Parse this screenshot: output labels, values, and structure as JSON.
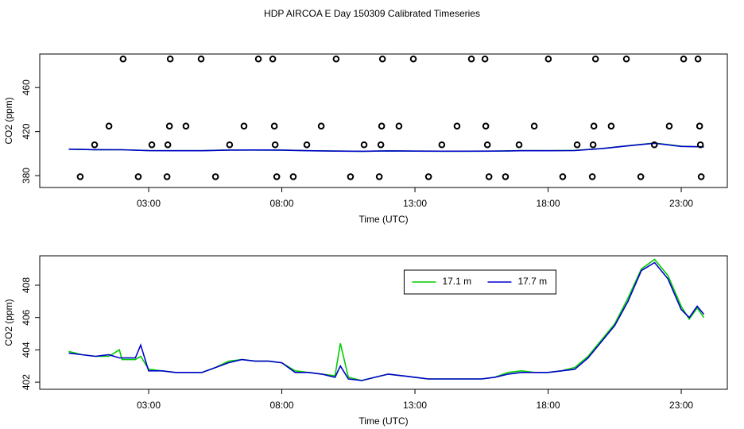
{
  "title": "HDP AIRCOA E  Day 150309  Calibrated Timeseries",
  "chart_data": [
    {
      "type": "scatter",
      "x_label": "Time (UTC)",
      "y_label": "CO2 (ppm)",
      "x": [
        2.04,
        3.81,
        4.97,
        7.12,
        7.66,
        10.04,
        11.78,
        12.94,
        15.12,
        15.63,
        18.01,
        19.78,
        20.94,
        23.09,
        23.63,
        1.51,
        3.78,
        4.4,
        6.58,
        7.72,
        9.48,
        11.75,
        12.4,
        14.58,
        15.66,
        17.48,
        19.72,
        20.37,
        22.55,
        23.69,
        0.97,
        3.12,
        3.72,
        6.04,
        7.75,
        8.94,
        11.09,
        11.72,
        14.01,
        15.72,
        16.91,
        19.09,
        19.69,
        21.99,
        23.72,
        0.43,
        2.61,
        3.69,
        5.51,
        7.81,
        8.43,
        10.58,
        11.66,
        13.51,
        15.78,
        16.4,
        18.55,
        19.66,
        21.48,
        23.75
      ],
      "values": [
        486,
        486,
        486,
        486,
        486,
        486,
        486,
        486,
        486,
        486,
        486,
        486,
        486,
        486,
        486,
        425,
        425,
        425,
        425,
        425,
        425,
        425,
        425,
        425,
        425,
        425,
        425,
        425,
        425,
        425,
        408,
        408,
        408,
        408,
        408,
        408,
        408,
        408,
        408,
        408,
        408,
        408,
        408,
        408,
        408,
        379,
        379,
        379,
        379,
        379,
        379,
        379,
        379,
        379,
        379,
        379,
        379,
        379,
        379,
        379
      ],
      "marker_color": "#000000",
      "series": [
        {
          "color": "#00cc00",
          "x": [
            0,
            1,
            2,
            3,
            4,
            5,
            6,
            7,
            8,
            9,
            10,
            11,
            12,
            13,
            14,
            15,
            16,
            17,
            18,
            19,
            20,
            21,
            22,
            23,
            23.85
          ],
          "values": [
            404.1,
            403.6,
            403.5,
            402.8,
            402.6,
            402.6,
            403.3,
            403.3,
            403.2,
            402.6,
            402.4,
            402.1,
            402.5,
            402.3,
            402.2,
            402.2,
            402.3,
            402.7,
            402.6,
            402.9,
            404.6,
            407.2,
            409.6,
            406.7,
            406.0
          ]
        },
        {
          "color": "#0000cc",
          "x": [
            0,
            1,
            2,
            3,
            4,
            5,
            6,
            7,
            8,
            9,
            10,
            11,
            12,
            13,
            14,
            15,
            16,
            17,
            18,
            19,
            20,
            21,
            22,
            23,
            23.85
          ],
          "values": [
            404.0,
            403.6,
            403.5,
            402.7,
            402.6,
            402.6,
            403.2,
            403.3,
            403.2,
            402.6,
            402.3,
            402.1,
            402.5,
            402.3,
            402.2,
            402.2,
            402.3,
            402.6,
            402.6,
            402.8,
            404.5,
            407.0,
            409.4,
            406.5,
            406.2
          ]
        }
      ],
      "xlim": [
        -1.09,
        24.73
      ],
      "ylim": [
        369.2,
        490.5
      ],
      "xticks": [
        {
          "value": 3,
          "label": "03:00"
        },
        {
          "value": 8,
          "label": "08:00"
        },
        {
          "value": 13,
          "label": "13:00"
        },
        {
          "value": 18,
          "label": "18:00"
        },
        {
          "value": 23,
          "label": "23:00"
        }
      ],
      "yticks": [
        380,
        420,
        460
      ]
    },
    {
      "type": "line",
      "x_label": "Time (UTC)",
      "y_label": "CO2 (ppm)",
      "x": [
        0,
        0.5,
        1,
        1.5,
        1.9,
        2,
        2.5,
        2.7,
        3,
        3.5,
        4,
        4.5,
        5,
        5.5,
        6,
        6.5,
        7,
        7.5,
        8,
        8.5,
        9,
        9.5,
        10,
        10.2,
        10.5,
        11,
        11.5,
        12,
        12.5,
        13,
        13.5,
        14,
        14.5,
        15,
        15.5,
        16,
        16.5,
        17,
        17.5,
        18,
        18.5,
        19,
        19.5,
        20,
        20.5,
        21,
        21.5,
        22,
        22.5,
        23,
        23.3,
        23.6,
        23.85
      ],
      "series": [
        {
          "name": "17.1 m",
          "color": "#00cc00",
          "values": [
            403.9,
            403.7,
            403.6,
            403.6,
            404.0,
            403.4,
            403.4,
            403.6,
            402.8,
            402.7,
            402.6,
            402.6,
            402.6,
            402.9,
            403.3,
            403.4,
            403.3,
            403.3,
            403.2,
            402.7,
            402.6,
            402.5,
            402.4,
            404.4,
            402.3,
            402.1,
            402.3,
            402.5,
            402.4,
            402.3,
            402.2,
            402.2,
            402.2,
            402.2,
            402.2,
            402.3,
            402.6,
            402.7,
            402.6,
            402.6,
            402.7,
            402.9,
            403.6,
            404.6,
            405.6,
            407.2,
            409.0,
            409.6,
            408.6,
            406.7,
            405.9,
            406.6,
            406.0
          ]
        },
        {
          "name": "17.7 m",
          "color": "#0000cc",
          "values": [
            403.8,
            403.7,
            403.6,
            403.7,
            403.5,
            403.5,
            403.5,
            404.3,
            402.7,
            402.7,
            402.6,
            402.6,
            402.6,
            402.9,
            403.2,
            403.4,
            403.3,
            403.3,
            403.2,
            402.6,
            402.6,
            402.5,
            402.3,
            403.0,
            402.2,
            402.1,
            402.3,
            402.5,
            402.4,
            402.3,
            402.2,
            402.2,
            402.2,
            402.2,
            402.2,
            402.3,
            402.5,
            402.6,
            402.6,
            402.6,
            402.7,
            402.8,
            403.5,
            404.5,
            405.5,
            407.0,
            408.9,
            409.4,
            408.4,
            406.5,
            406.0,
            406.7,
            406.2
          ]
        }
      ],
      "legend": "top",
      "xlim": [
        -1.09,
        24.73
      ],
      "ylim": [
        401.56,
        409.82
      ],
      "xticks": [
        {
          "value": 3,
          "label": "03:00"
        },
        {
          "value": 8,
          "label": "08:00"
        },
        {
          "value": 13,
          "label": "13:00"
        },
        {
          "value": 18,
          "label": "18:00"
        },
        {
          "value": 23,
          "label": "23:00"
        }
      ],
      "yticks": [
        402,
        404,
        406,
        408
      ]
    }
  ]
}
